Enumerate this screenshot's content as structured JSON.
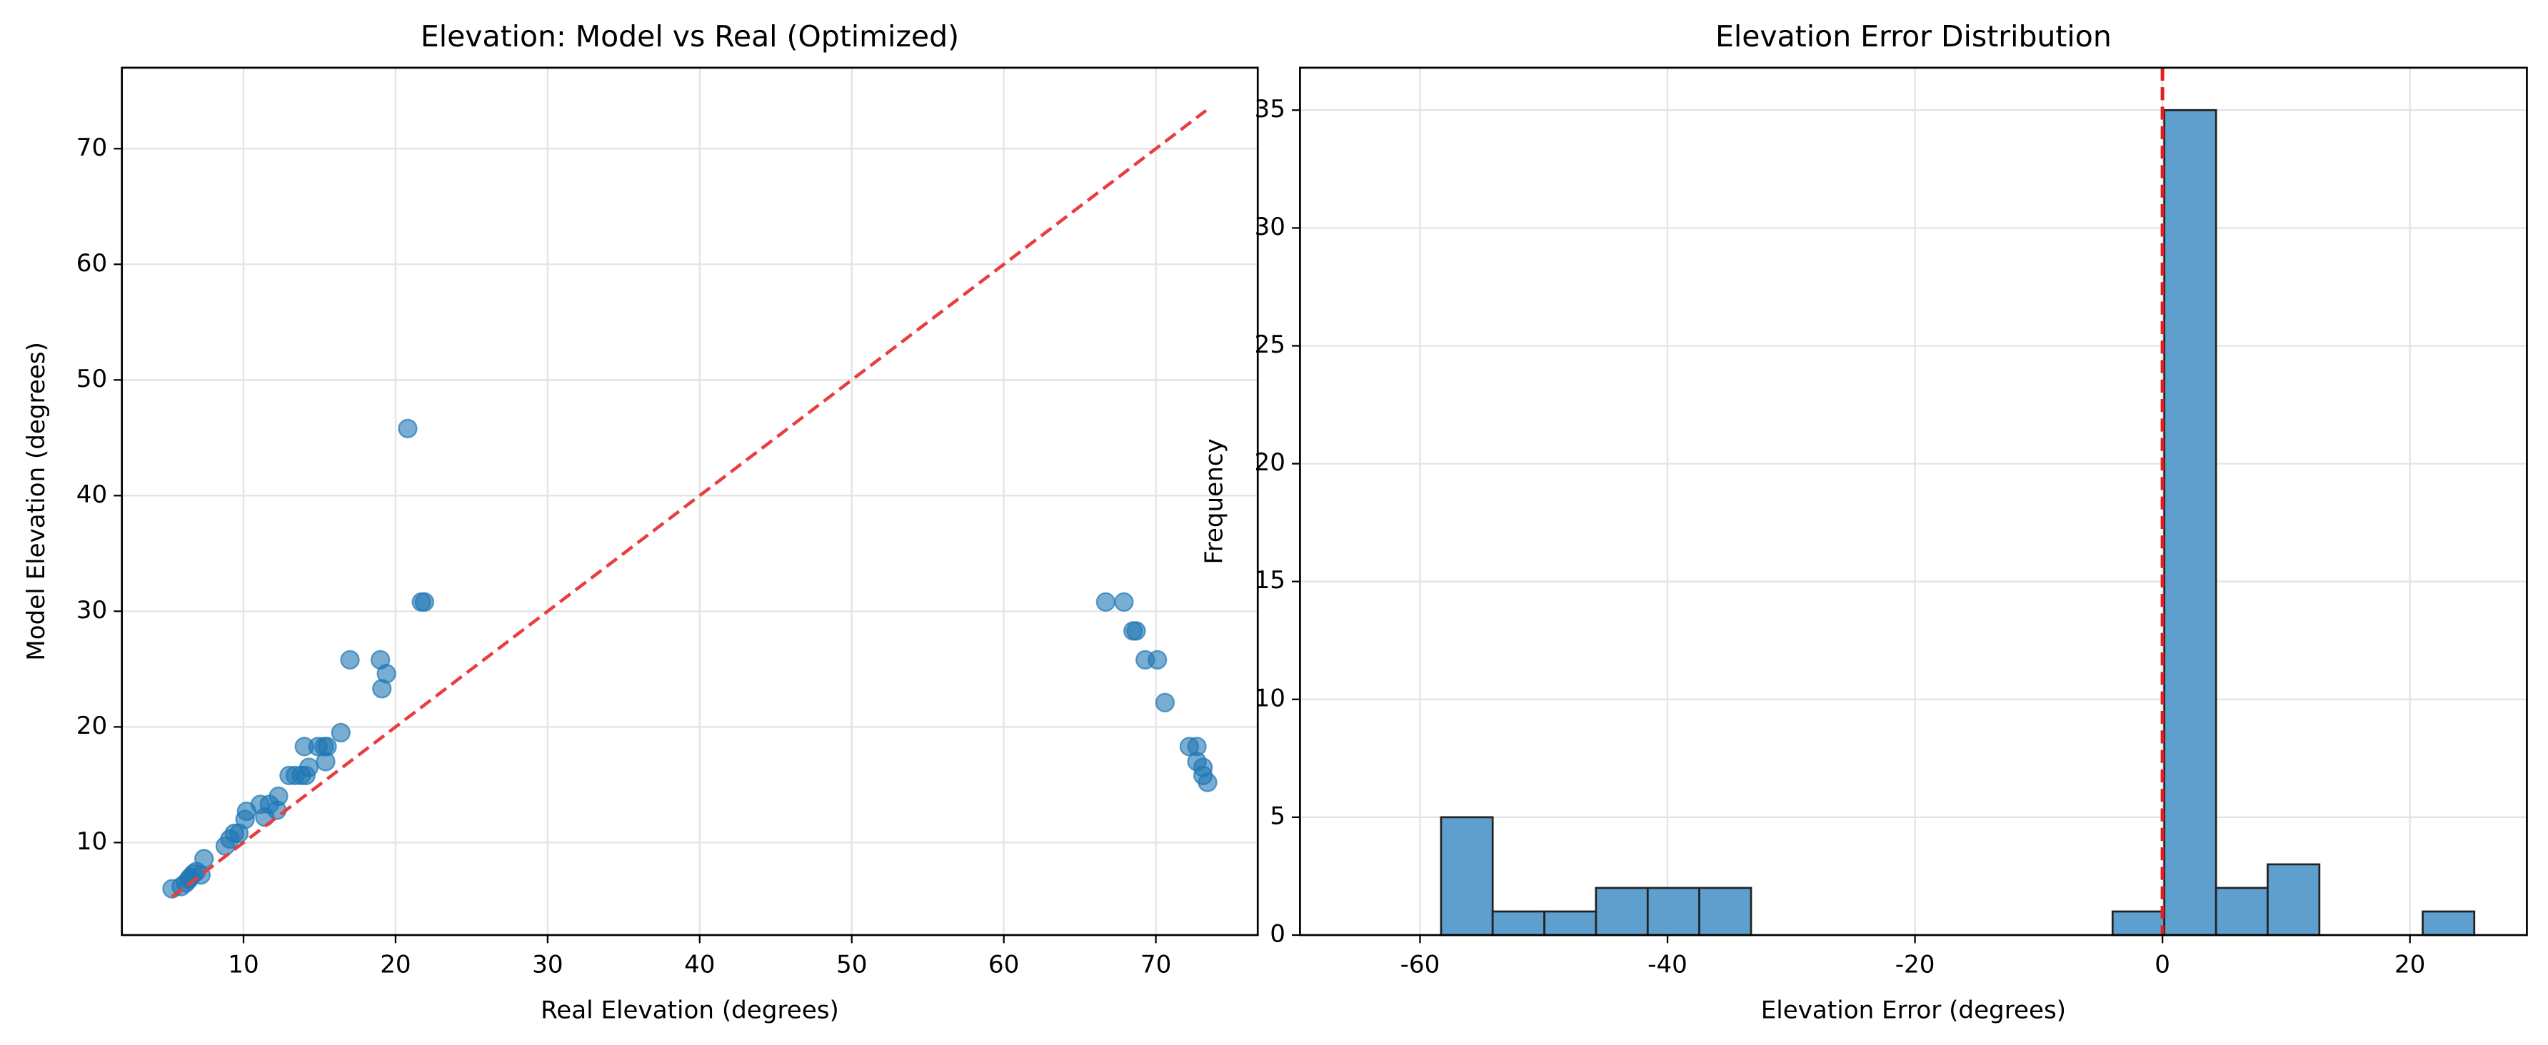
{
  "chart_data": [
    {
      "type": "scatter",
      "title": "Elevation: Model vs Real (Optimized)",
      "xlabel": "Real Elevation (degrees)",
      "ylabel": "Model Elevation (degrees)",
      "color": "#1f77b4",
      "grid": true,
      "xlim": [
        2,
        76.7
      ],
      "ylim": [
        2,
        77
      ],
      "xticks": [
        10,
        20,
        30,
        40,
        50,
        60,
        70
      ],
      "yticks": [
        10,
        20,
        30,
        40,
        50,
        60,
        70
      ],
      "x": [
        5.3,
        5.9,
        6.2,
        6.4,
        6.5,
        6.7,
        6.9,
        7.2,
        7.4,
        8.8,
        9.1,
        9.4,
        9.7,
        10.1,
        10.2,
        11.1,
        11.4,
        11.7,
        12.2,
        12.3,
        13.0,
        13.4,
        13.8,
        14.0,
        14.3,
        14.1,
        14.9,
        15.3,
        15.4,
        15.5,
        16.4,
        17.0,
        19.0,
        19.1,
        19.4,
        20.8,
        21.7,
        21.9,
        66.7,
        67.9,
        68.5,
        68.7,
        69.3,
        70.1,
        70.6,
        72.2,
        72.7,
        72.7,
        73.1,
        73.1,
        73.4
      ],
      "values": [
        6.0,
        6.2,
        6.5,
        6.8,
        7.0,
        7.3,
        7.5,
        7.2,
        8.6,
        9.7,
        10.3,
        10.8,
        10.8,
        12.0,
        12.7,
        13.3,
        12.2,
        13.3,
        12.8,
        14.0,
        15.8,
        15.8,
        15.8,
        18.3,
        16.5,
        15.8,
        18.3,
        18.3,
        17.0,
        18.3,
        19.5,
        25.8,
        25.8,
        23.3,
        24.6,
        45.8,
        30.8,
        30.8,
        30.8,
        30.8,
        28.3,
        28.3,
        25.8,
        25.8,
        22.1,
        18.3,
        18.3,
        17.0,
        16.5,
        15.8,
        15.2
      ],
      "diagonal": {
        "from": 5.3,
        "to": 73.3,
        "color": "#e83e3e"
      }
    },
    {
      "type": "histogram",
      "title": "Elevation Error Distribution",
      "xlabel": "Elevation Error (degrees)",
      "ylabel": "Frequency",
      "color": "#5f9fcd",
      "grid": true,
      "xlim": [
        -69.7,
        29.45
      ],
      "ylim": [
        0,
        36.8
      ],
      "xticks": [
        -60,
        -40,
        -20,
        0,
        20
      ],
      "yticks": [
        0,
        5,
        10,
        15,
        20,
        25,
        30,
        35
      ],
      "bins": [
        -58.3,
        -54.13,
        -49.95,
        -45.78,
        -41.6,
        -37.43,
        -33.25,
        -29.08,
        -24.9,
        -20.73,
        -16.55,
        -12.38,
        -8.2,
        -4.03,
        0.15,
        4.33,
        8.5,
        12.68,
        16.85,
        21.03,
        25.2
      ],
      "values": [
        5,
        1,
        1,
        2,
        2,
        2,
        0,
        0,
        0,
        0,
        0,
        0,
        0,
        1,
        35,
        2,
        3,
        0,
        0,
        1
      ],
      "vline": {
        "value": 0,
        "color": "#e02020"
      }
    }
  ]
}
